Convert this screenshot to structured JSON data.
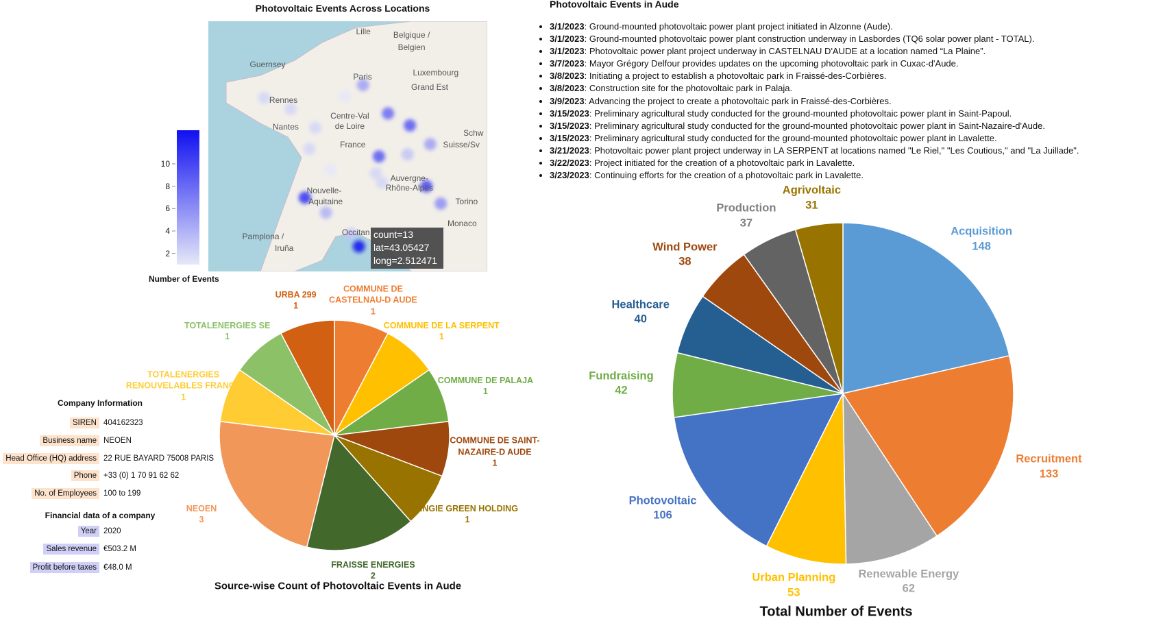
{
  "chart_data": [
    {
      "type": "map",
      "title": "Photovoltaic Events Across Locations",
      "colorbar_title": "Number of Events",
      "clim": [
        1,
        13
      ],
      "cticks": [
        2,
        4,
        6,
        8,
        10
      ],
      "xlim": [
        -5.8,
        9.6
      ],
      "ylim": [
        42.2,
        50.75
      ],
      "lon": [
        2.74,
        -2.72,
        0.1,
        1.74,
        4.12,
        5.33,
        6.45,
        3.62,
        5.2,
        3.45,
        6.24,
        7.03,
        -0.47,
        0.7,
        2.08,
        2.512471,
        -1.26,
        -0.22,
        0.95,
        3.78
      ],
      "lat": [
        48.57,
        48.13,
        47.11,
        48.19,
        47.6,
        47.19,
        46.55,
        46.13,
        46.2,
        45.55,
        45.11,
        44.52,
        44.72,
        44.21,
        43.47,
        43.05427,
        47.75,
        46.39,
        45.67,
        45.24
      ],
      "count": [
        5,
        2,
        2,
        1,
        8,
        9,
        5,
        9,
        3,
        2,
        10,
        6,
        11,
        4,
        3,
        13,
        2,
        2,
        1,
        2
      ],
      "map_labels": [
        "Lille",
        "Belgique /",
        "Belgien",
        "Guernsey",
        "Paris",
        "Luxembourg",
        "Grand Est",
        "Rennes",
        "Nantes",
        "Centre-Val",
        "de Loire",
        "France",
        "Schw",
        "Suisse/Sv",
        "Nouvelle-",
        "Aquitaine",
        "Auvergne-",
        "Rhône-Alpes",
        "Torino",
        "Monaco",
        "Pamplona /",
        "Iruña",
        "Occitan"
      ],
      "tooltip": [
        "count=13",
        "lat=43.05427",
        "long=2.512471"
      ]
    },
    {
      "type": "pie",
      "title": "Source-wise Count of Photovoltaic Events in Aude",
      "categories": [
        "COMMUNE DE CASTELNAU-D AUDE",
        "COMMUNE DE LA SERPENT",
        "COMMUNE DE PALAJA",
        "COMMUNE DE SAINT-NAZAIRE-D AUDE",
        "ENGIE GREEN HOLDING",
        "FRAISSE ENERGIES",
        "NEOEN",
        "TOTALENERGIES RENOUVELABLES FRANCE",
        "TOTALENERGIES SE",
        "URBA 299"
      ],
      "values": [
        1,
        1,
        1,
        1,
        1,
        2,
        3,
        1,
        1,
        1
      ],
      "colors": [
        "#ed7d31",
        "#ffc000",
        "#70ad47",
        "#9e480e",
        "#997300",
        "#43682b",
        "#f1975a",
        "#ffcd33",
        "#8cc168",
        "#d26012"
      ]
    },
    {
      "type": "pie",
      "title": "Total Number of Events",
      "categories": [
        "Acquisition",
        "Recruitment",
        "Renewable Energy",
        "Urban Planning",
        "Photovoltaic",
        "Fundraising",
        "Healthcare",
        "Wind Power",
        "Production",
        "Agrivoltaic"
      ],
      "values": [
        148,
        133,
        62,
        53,
        106,
        42,
        40,
        38,
        37,
        31
      ],
      "colors": [
        "#5b9bd5",
        "#ed7d31",
        "#a5a5a5",
        "#ffc000",
        "#4472c4",
        "#70ad47",
        "#255e91",
        "#9e480e",
        "#636363",
        "#997300"
      ]
    }
  ],
  "events": {
    "title": "Photovoltaic Events in Aude",
    "items": [
      {
        "date": "3/1/2023",
        "text": ": Ground-mounted photovoltaic power plant project initiated in Alzonne (Aude)."
      },
      {
        "date": "3/1/2023",
        "text": ": Ground-mounted photovoltaic power plant construction underway in Lasbordes (TQ6 solar power plant - TOTAL)."
      },
      {
        "date": "3/1/2023",
        "text": ": Photovoltaic power plant project underway in CASTELNAU D'AUDE at a location named “La Plaine”."
      },
      {
        "date": "3/7/2023",
        "text": ": Mayor Grégory Delfour provides updates on the upcoming photovoltaic park in Cuxac-d'Aude."
      },
      {
        "date": "3/8/2023",
        "text": ": Initiating a project to establish a photovoltaic park in Fraissé-des-Corbières."
      },
      {
        "date": "3/8/2023",
        "text": ": Construction site for the photovoltaic park in Palaja."
      },
      {
        "date": "3/9/2023",
        "text": ": Advancing the project to create a photovoltaic park in Fraissé-des-Corbières."
      },
      {
        "date": "3/15/2023",
        "text": ": Preliminary agricultural study conducted for the ground-mounted photovoltaic power plant in Saint-Papoul."
      },
      {
        "date": "3/15/2023",
        "text": ": Preliminary agricultural study conducted for the ground-mounted photovoltaic power plant in Saint-Nazaire-d'Aude."
      },
      {
        "date": "3/15/2023",
        "text": ": Preliminary agricultural study conducted for the ground-mounted photovoltaic power plant in Lavalette."
      },
      {
        "date": "3/21/2023",
        "text": ": Photovoltaic power plant project underway in LA SERPENT at locations named \"Le Riel,\" \"Les Coutious,\" and \"La Juillade\"."
      },
      {
        "date": "3/22/2023",
        "text": ": Project initiated for the creation of a photovoltaic park in Lavalette."
      },
      {
        "date": "3/23/2023",
        "text": ": Continuing efforts for the creation of a photovoltaic park in Lavalette."
      }
    ]
  },
  "company_info": {
    "title": "Company Information",
    "rows": [
      [
        "SIREN",
        "404162323"
      ],
      [
        "Business name",
        "NEOEN"
      ],
      [
        "Head Office (HQ) address",
        "22 RUE BAYARD 75008 PARIS"
      ],
      [
        "Phone",
        "+33 (0) 1 70 91 62 62"
      ],
      [
        "No. of Employees",
        "100 to 199"
      ]
    ]
  },
  "financial_data": {
    "title": "Financial data of a company",
    "rows": [
      [
        "Year",
        "2020"
      ],
      [
        "Sales revenue",
        "€503.2 M"
      ],
      [
        "Profit before taxes",
        "€48.0 M"
      ]
    ]
  }
}
